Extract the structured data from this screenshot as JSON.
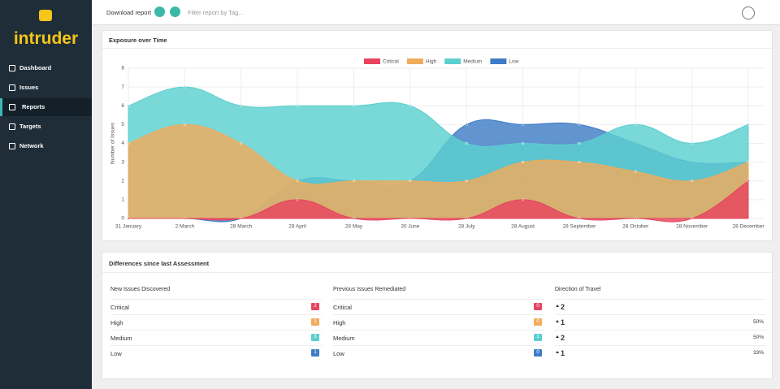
{
  "sidebar": {
    "logo": "intruder",
    "nav": [
      "Dashboard",
      "Issues",
      "Reports",
      "Targets",
      "Network"
    ]
  },
  "topbar": {
    "download": "Download report",
    "filter": "Filter report by Tag..."
  },
  "chart_data": {
    "type": "area",
    "title": "Exposure over Time",
    "y_label": "Number of Issues",
    "categories": [
      "31 January",
      "2 March",
      "28 March",
      "28 April",
      "28 May",
      "30 June",
      "28 July",
      "28 August",
      "28 September",
      "28 October",
      "28 November",
      "28 December"
    ],
    "series": [
      {
        "name": "Critical",
        "color": "#e8445f",
        "values": [
          0,
          0,
          0,
          1,
          0,
          0,
          0,
          1,
          0,
          0,
          0,
          2
        ]
      },
      {
        "name": "High",
        "color": "#f0ab5c",
        "values": [
          4,
          5,
          4,
          2,
          2,
          2,
          2,
          3,
          3,
          2.5,
          2,
          3
        ]
      },
      {
        "name": "Medium",
        "color": "#5ccfcf",
        "values": [
          6,
          7,
          6,
          6,
          6,
          6,
          4,
          4,
          4,
          5,
          4,
          5
        ]
      },
      {
        "name": "Low",
        "color": "#3f7cc6",
        "values": [
          0,
          0,
          0,
          2,
          2,
          2,
          5,
          5,
          5,
          4,
          3,
          3
        ]
      }
    ],
    "ylim": [
      0,
      8
    ],
    "yticks": [
      0,
      1,
      2,
      3,
      4,
      5,
      6,
      7,
      8
    ],
    "grid": true,
    "legend": "top"
  },
  "differences": {
    "title": "Differences since last Assessment",
    "columns": [
      "New Issues Discovered",
      "Previous Issues Remediated",
      "Direction of Travel"
    ],
    "rows": [
      {
        "label": "Critical",
        "new": 2,
        "remediated": 0,
        "direction": 2
      },
      {
        "label": "High",
        "new": 1,
        "remediated": 0,
        "direction": 1,
        "change": "50%"
      },
      {
        "label": "Medium",
        "new": 3,
        "remediated": 1,
        "direction": 2,
        "change": "50%"
      },
      {
        "label": "Low",
        "new": 1,
        "remediated": 0,
        "direction": 1,
        "change": "33%"
      }
    ]
  }
}
